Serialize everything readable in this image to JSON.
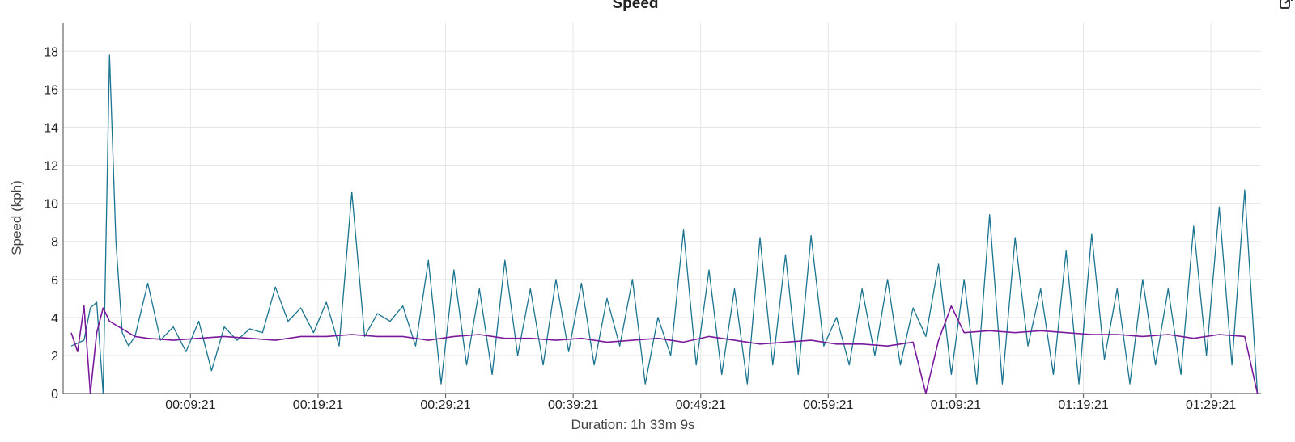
{
  "chart_data": {
    "type": "line",
    "title": "Speed",
    "xlabel": "Duration: 1h 33m 9s",
    "ylabel": "Speed (kph)",
    "x_unit": "h:mm:ss elapsed",
    "xlim": [
      "00:00:00",
      "01:33:09"
    ],
    "ylim": [
      0,
      19.5
    ],
    "y_ticks": [
      0,
      2,
      4,
      6,
      8,
      10,
      12,
      14,
      16,
      18
    ],
    "y_tick_labels": [
      "0",
      "2",
      "4",
      "6",
      "8",
      "10",
      "12",
      "14",
      "16",
      "18"
    ],
    "x_ticks": [
      "00:09:21",
      "00:19:21",
      "00:29:21",
      "00:39:21",
      "00:49:21",
      "00:59:21",
      "01:09:21",
      "01:19:21",
      "01:29:21"
    ],
    "grid": true,
    "legend": "none",
    "series": [
      {
        "color": "#1a7490",
        "x": [
          "00:00:00",
          "00:01:00",
          "00:01:30",
          "00:02:00",
          "00:02:30",
          "00:03:00",
          "00:03:30",
          "00:04:00",
          "00:04:30",
          "00:05:00",
          "00:06:00",
          "00:07:00",
          "00:08:00",
          "00:09:00",
          "00:10:00",
          "00:11:00",
          "00:12:00",
          "00:13:00",
          "00:14:00",
          "00:15:00",
          "00:16:00",
          "00:17:00",
          "00:18:00",
          "00:19:00",
          "00:20:00",
          "00:21:00",
          "00:22:00",
          "00:23:00",
          "00:24:00",
          "00:25:00",
          "00:26:00",
          "00:27:00",
          "00:28:00",
          "00:29:00",
          "00:30:00",
          "00:31:00",
          "00:32:00",
          "00:33:00",
          "00:34:00",
          "00:35:00",
          "00:36:00",
          "00:37:00",
          "00:38:00",
          "00:39:00",
          "00:40:00",
          "00:41:00",
          "00:42:00",
          "00:43:00",
          "00:44:00",
          "00:45:00",
          "00:46:00",
          "00:47:00",
          "00:48:00",
          "00:49:00",
          "00:50:00",
          "00:51:00",
          "00:52:00",
          "00:53:00",
          "00:54:00",
          "00:55:00",
          "00:56:00",
          "00:57:00",
          "00:58:00",
          "00:59:00",
          "01:00:00",
          "01:01:00",
          "01:02:00",
          "01:03:00",
          "01:04:00",
          "01:05:00",
          "01:06:00",
          "01:07:00",
          "01:08:00",
          "01:09:00",
          "01:10:00",
          "01:11:00",
          "01:12:00",
          "01:13:00",
          "01:14:00",
          "01:15:00",
          "01:16:00",
          "01:17:00",
          "01:18:00",
          "01:19:00",
          "01:20:00",
          "01:21:00",
          "01:22:00",
          "01:23:00",
          "01:24:00",
          "01:25:00",
          "01:26:00",
          "01:27:00",
          "01:28:00",
          "01:29:00",
          "01:30:00",
          "01:31:00",
          "01:32:00",
          "01:33:00"
        ],
        "y": [
          2.5,
          2.8,
          4.5,
          4.8,
          0,
          17.8,
          8,
          3.2,
          2.5,
          3,
          5.8,
          2.8,
          3.5,
          2.2,
          3.8,
          1.2,
          3.5,
          2.8,
          3.4,
          3.2,
          5.6,
          3.8,
          4.5,
          3.2,
          4.8,
          2.5,
          10.6,
          3,
          4.2,
          3.8,
          4.6,
          2.5,
          7,
          0.5,
          6.5,
          1.5,
          5.5,
          1,
          7,
          2,
          5.5,
          1.5,
          6,
          2.2,
          5.8,
          1.5,
          5,
          2.5,
          6,
          0.5,
          4,
          2,
          8.6,
          1.5,
          6.5,
          1,
          5.5,
          0.5,
          8.2,
          1.5,
          7.3,
          1,
          8.3,
          2.5,
          4,
          1.5,
          5.5,
          2,
          6,
          1.5,
          4.5,
          3,
          6.8,
          1,
          6,
          0.5,
          9.4,
          0.5,
          8.2,
          2.5,
          5.5,
          1,
          7.5,
          0.5,
          8.4,
          1.8,
          5.5,
          0.5,
          6,
          1.5,
          5.5,
          1,
          8.8,
          2,
          9.8,
          1.5,
          10.7,
          0
        ]
      },
      {
        "color": "#7a1a9c",
        "x": [
          "00:00:00",
          "00:00:30",
          "00:01:00",
          "00:01:30",
          "00:02:00",
          "00:02:30",
          "00:03:00",
          "00:04:00",
          "00:05:00",
          "00:06:00",
          "00:08:00",
          "00:10:00",
          "00:12:00",
          "00:14:00",
          "00:16:00",
          "00:18:00",
          "00:20:00",
          "00:22:00",
          "00:24:00",
          "00:26:00",
          "00:28:00",
          "00:30:00",
          "00:32:00",
          "00:34:00",
          "00:36:00",
          "00:38:00",
          "00:40:00",
          "00:42:00",
          "00:44:00",
          "00:46:00",
          "00:48:00",
          "00:50:00",
          "00:52:00",
          "00:54:00",
          "00:56:00",
          "00:58:00",
          "01:00:00",
          "01:02:00",
          "01:04:00",
          "01:06:00",
          "01:07:00",
          "01:08:00",
          "01:09:00",
          "01:10:00",
          "01:12:00",
          "01:14:00",
          "01:16:00",
          "01:18:00",
          "01:20:00",
          "01:22:00",
          "01:24:00",
          "01:26:00",
          "01:28:00",
          "01:30:00",
          "01:32:00",
          "01:33:00"
        ],
        "y": [
          3.2,
          2.2,
          4.6,
          0,
          3.2,
          4.5,
          3.8,
          3.4,
          3,
          2.9,
          2.8,
          2.9,
          3,
          2.9,
          2.8,
          3,
          3,
          3.1,
          3,
          3,
          2.8,
          3,
          3.1,
          2.9,
          2.9,
          2.8,
          2.9,
          2.7,
          2.8,
          2.9,
          2.7,
          3,
          2.8,
          2.6,
          2.7,
          2.8,
          2.6,
          2.6,
          2.5,
          2.7,
          0,
          2.8,
          4.6,
          3.2,
          3.3,
          3.2,
          3.3,
          3.2,
          3.1,
          3.1,
          3,
          3.1,
          2.9,
          3.1,
          3,
          0
        ]
      }
    ]
  }
}
